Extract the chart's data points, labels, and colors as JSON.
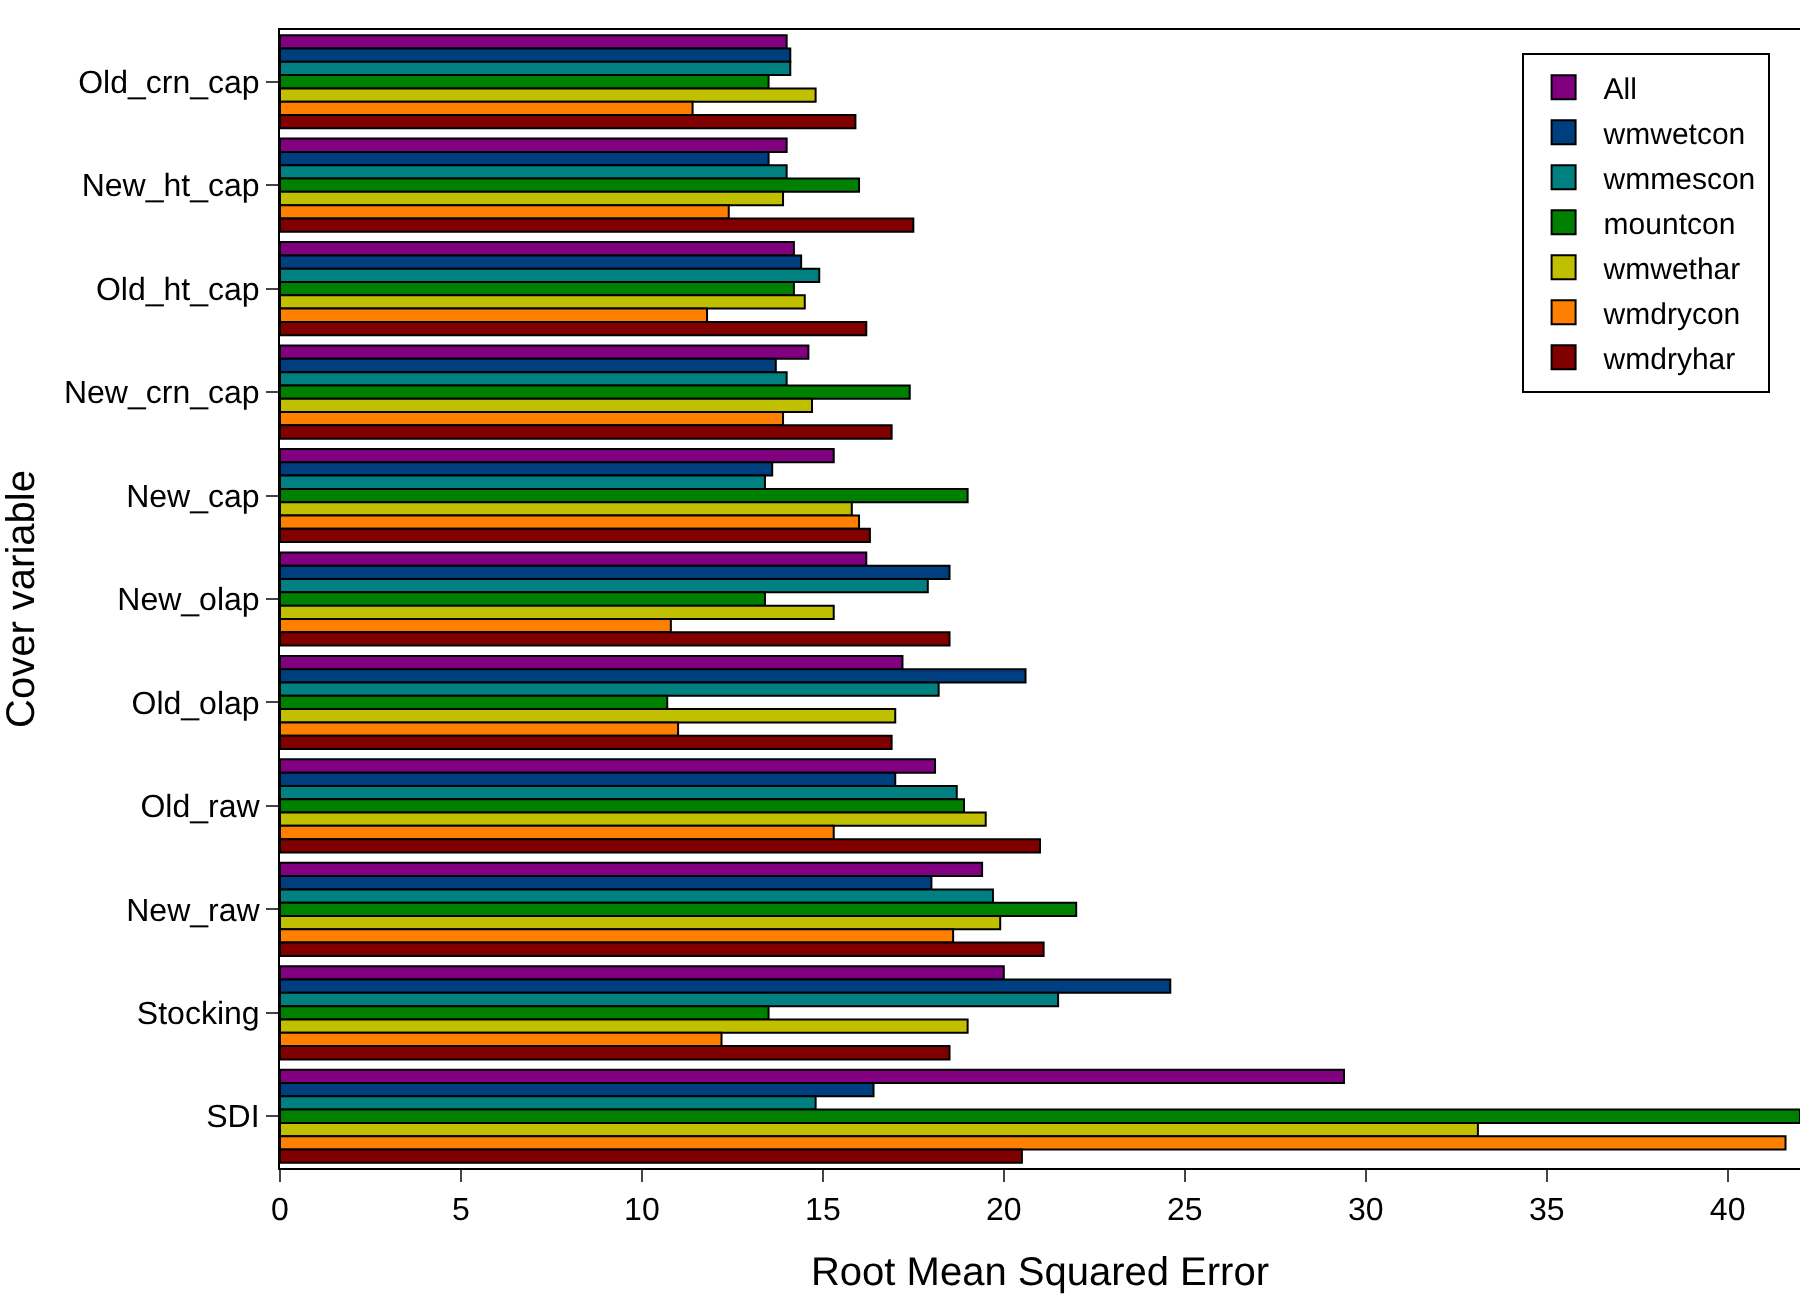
{
  "chart_data": {
    "type": "bar",
    "orientation": "horizontal",
    "xlabel": "Root Mean Squared Error",
    "ylabel": "Cover variable",
    "categories": [
      "Old_crn_cap",
      "New_ht_cap",
      "Old_ht_cap",
      "New_crn_cap",
      "New_cap",
      "New_olap",
      "Old_olap",
      "Old_raw",
      "New_raw",
      "Stocking",
      "SDI"
    ],
    "series": [
      {
        "name": "All",
        "color": "#800080",
        "values": [
          14.0,
          14.0,
          14.2,
          14.6,
          15.3,
          16.2,
          17.2,
          18.1,
          19.4,
          20.0,
          29.4
        ]
      },
      {
        "name": "wmwetcon",
        "color": "#003f7f",
        "values": [
          14.1,
          13.5,
          14.4,
          13.7,
          13.6,
          18.5,
          20.6,
          17.0,
          18.0,
          24.6,
          16.4
        ]
      },
      {
        "name": "wmmescon",
        "color": "#008080",
        "values": [
          14.1,
          14.0,
          14.9,
          14.0,
          13.4,
          17.9,
          18.2,
          18.7,
          19.7,
          21.5,
          14.8
        ]
      },
      {
        "name": "mountcon",
        "color": "#008000",
        "values": [
          13.5,
          16.0,
          14.2,
          17.4,
          19.0,
          13.4,
          10.7,
          18.9,
          22.0,
          13.5,
          42.0
        ]
      },
      {
        "name": "wmwethar",
        "color": "#c0c000",
        "values": [
          14.8,
          13.9,
          14.5,
          14.7,
          15.8,
          15.3,
          17.0,
          19.5,
          19.9,
          19.0,
          33.1
        ]
      },
      {
        "name": "wmdrycon",
        "color": "#ff8000",
        "values": [
          11.4,
          12.4,
          11.8,
          13.9,
          16.0,
          10.8,
          11.0,
          15.3,
          18.6,
          12.2,
          41.6
        ]
      },
      {
        "name": "wmdryhar",
        "color": "#800000",
        "values": [
          15.9,
          17.5,
          16.2,
          16.9,
          16.3,
          18.5,
          16.9,
          21.0,
          21.1,
          18.5,
          20.5
        ]
      }
    ],
    "xlim": [
      0,
      42
    ],
    "xticks": [
      0,
      5,
      10,
      15,
      20,
      25,
      30,
      35,
      40
    ],
    "legend": "top right"
  }
}
